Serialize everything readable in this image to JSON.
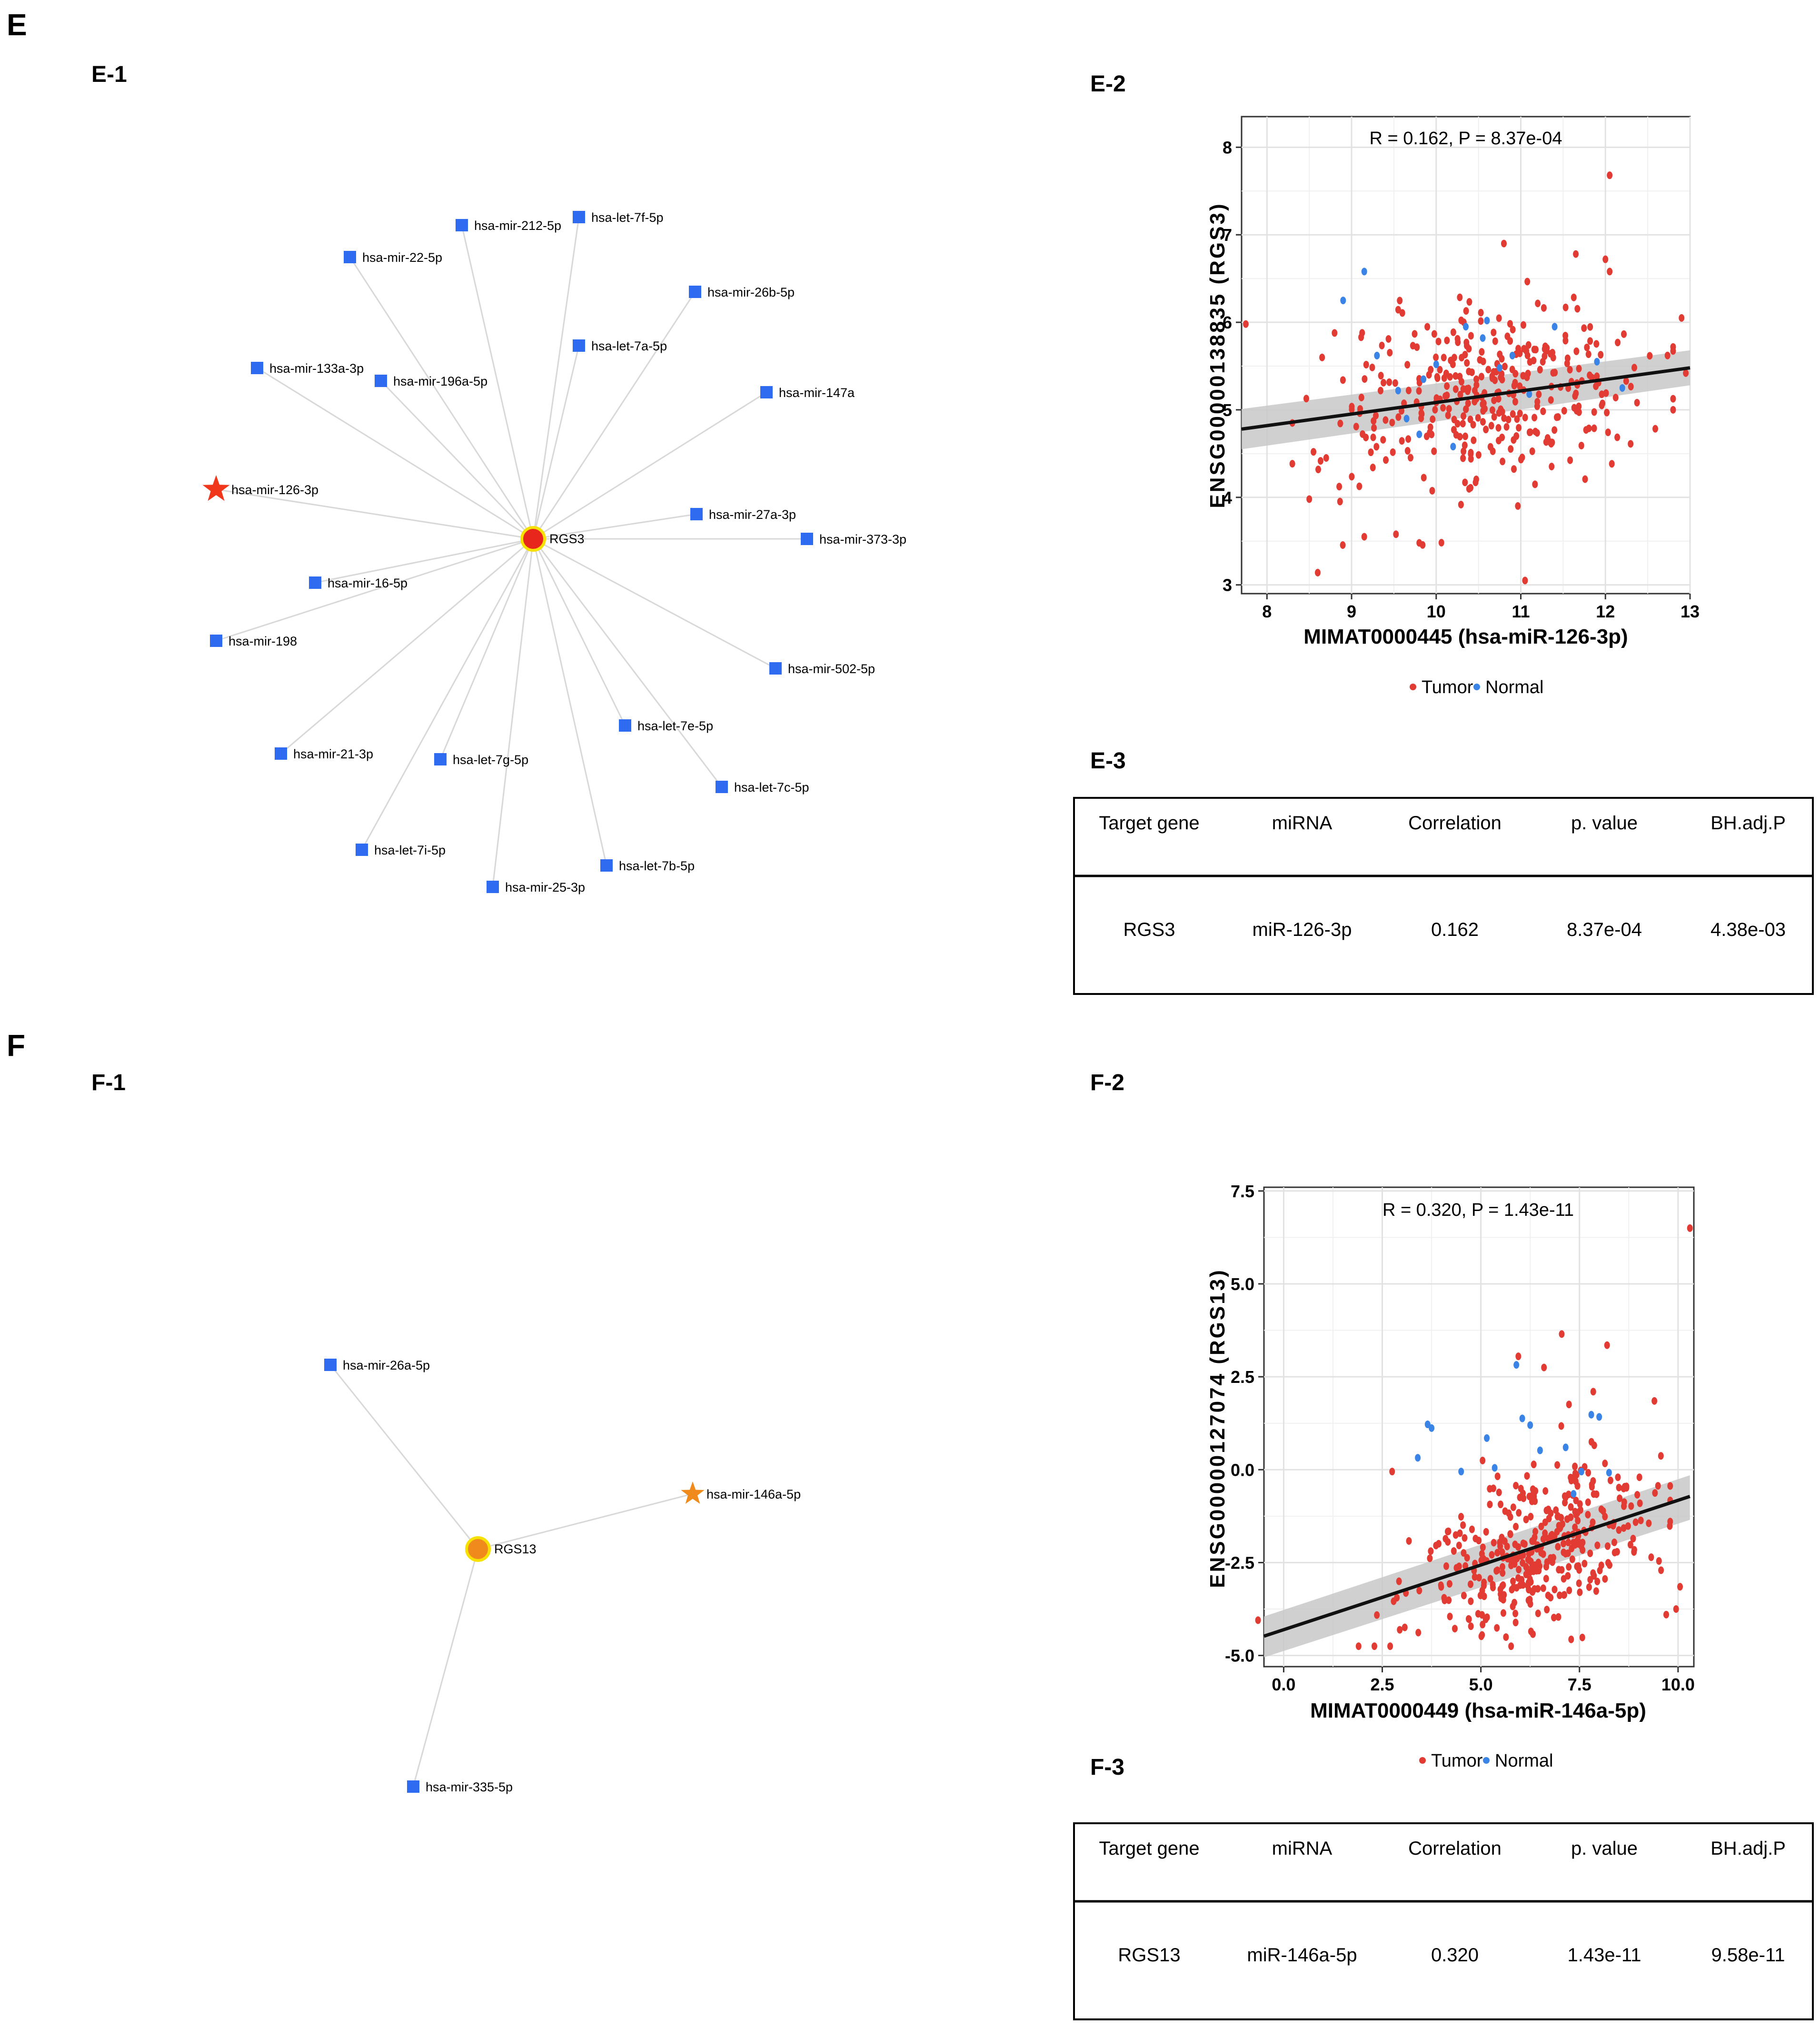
{
  "panels": {
    "E": "E",
    "E1": "E-1",
    "E2": "E-2",
    "E3": "E-3",
    "F": "F",
    "F1": "F-1",
    "F2": "F-2",
    "F3": "F-3"
  },
  "colors": {
    "mirna": "#2f6bf0",
    "edge": "#d8d8d8",
    "hubE": "#e8261c",
    "hubF": "#f08a1c",
    "hubRing": "#f6e100",
    "starE": "#f0371c",
    "starF": "#f08a1c",
    "tumor": "#e23b34",
    "normal": "#3a84e8",
    "band": "#c8c8c8",
    "line": "#111111"
  },
  "networkE": {
    "hub": "RGS3",
    "star": "hsa-mir-126-3p",
    "nodes": [
      "hsa-mir-212-5p",
      "hsa-let-7f-5p",
      "hsa-mir-22-5p",
      "hsa-mir-26b-5p",
      "hsa-let-7a-5p",
      "hsa-mir-133a-3p",
      "hsa-mir-196a-5p",
      "hsa-mir-147a",
      "hsa-mir-27a-3p",
      "hsa-mir-373-3p",
      "hsa-mir-16-5p",
      "hsa-mir-198",
      "hsa-mir-502-5p",
      "hsa-let-7e-5p",
      "hsa-mir-21-3p",
      "hsa-let-7g-5p",
      "hsa-let-7c-5p",
      "hsa-let-7i-5p",
      "hsa-let-7b-5p",
      "hsa-mir-25-3p"
    ]
  },
  "networkF": {
    "hub": "RGS13",
    "star": "hsa-mir-146a-5p",
    "nodes": [
      "hsa-mir-26a-5p",
      "hsa-mir-335-5p"
    ]
  },
  "chart_data": [
    {
      "type": "scatter",
      "title": "R = 0.162, P = 8.37e-04",
      "xlabel": "MIMAT0000445 (hsa-miR-126-3p)",
      "ylabel": "ENSG00000138835 (RGS3)",
      "xlim": [
        7.7,
        13.0
      ],
      "ylim": [
        2.9,
        8.35
      ],
      "xticks": [
        "8",
        "9",
        "10",
        "11",
        "12",
        "13"
      ],
      "yticks": [
        "3",
        "4",
        "5",
        "6",
        "7",
        "8"
      ],
      "legend": [
        "Tumor",
        "Normal"
      ],
      "fit": {
        "x": [
          7.7,
          13.0
        ],
        "y": [
          4.78,
          5.48
        ]
      },
      "band": {
        "x": [
          7.7,
          13.0
        ],
        "lower": [
          4.55,
          5.28
        ],
        "upper": [
          5.01,
          5.68
        ]
      },
      "series": [
        {
          "name": "Normal",
          "points": [
            [
              9.15,
              6.58
            ],
            [
              8.9,
              6.25
            ],
            [
              9.3,
              5.62
            ],
            [
              9.55,
              5.22
            ],
            [
              9.65,
              4.9
            ],
            [
              9.85,
              5.35
            ],
            [
              10.0,
              5.52
            ],
            [
              10.2,
              4.58
            ],
            [
              10.35,
              5.95
            ],
            [
              10.55,
              5.82
            ],
            [
              10.75,
              5.48
            ],
            [
              10.9,
              5.62
            ],
            [
              11.1,
              5.18
            ],
            [
              11.4,
              5.95
            ],
            [
              12.2,
              5.25
            ],
            [
              9.8,
              4.72
            ],
            [
              10.6,
              6.02
            ],
            [
              11.9,
              5.55
            ]
          ]
        },
        {
          "name": "Tumor",
          "points": [
            [
              7.75,
              5.98
            ],
            [
              8.5,
              3.98
            ],
            [
              8.6,
              3.14
            ],
            [
              12.05,
              7.68
            ],
            [
              10.8,
              6.9
            ],
            [
              11.05,
              3.05
            ],
            [
              9.15,
              3.55
            ],
            [
              9.8,
              3.48
            ],
            [
              12.9,
              6.05
            ],
            [
              12.95,
              5.42
            ],
            [
              12.0,
              6.72
            ],
            [
              12.05,
              6.58
            ],
            [
              11.65,
              6.78
            ],
            [
              8.3,
              4.85
            ],
            [
              8.55,
              4.52
            ],
            [
              8.7,
              4.45
            ]
          ]
        }
      ]
    },
    {
      "type": "scatter",
      "title": "R = 0.320, P = 1.43e-11",
      "xlabel": "MIMAT0000449 (hsa-miR-146a-5p)",
      "ylabel": "ENSG00000127074 (RGS13)",
      "xlim": [
        -0.5,
        10.4
      ],
      "ylim": [
        -5.3,
        7.6
      ],
      "xticks": [
        "0.0",
        "2.5",
        "5.0",
        "7.5",
        "10.0"
      ],
      "yticks": [
        "-5.0",
        "-2.5",
        "0.0",
        "2.5",
        "5.0",
        "7.5"
      ],
      "legend": [
        "Tumor",
        "Normal"
      ],
      "fit": {
        "x": [
          -0.5,
          10.3
        ],
        "y": [
          -4.48,
          -0.72
        ]
      },
      "band": {
        "x": [
          -0.5,
          10.3
        ],
        "lower": [
          -5.05,
          -1.35
        ],
        "upper": [
          -3.95,
          -0.15
        ]
      },
      "series": [
        {
          "name": "Normal",
          "points": [
            [
              3.65,
              1.22
            ],
            [
              3.75,
              1.12
            ],
            [
              3.4,
              0.32
            ],
            [
              4.5,
              -0.05
            ],
            [
              5.15,
              0.85
            ],
            [
              5.35,
              0.05
            ],
            [
              5.9,
              2.82
            ],
            [
              6.05,
              1.38
            ],
            [
              6.25,
              1.2
            ],
            [
              6.5,
              0.52
            ],
            [
              7.15,
              0.6
            ],
            [
              7.35,
              -0.65
            ],
            [
              7.55,
              -0.05
            ],
            [
              7.8,
              1.48
            ],
            [
              8.25,
              -0.08
            ],
            [
              8.0,
              1.42
            ]
          ]
        },
        {
          "name": "Tumor",
          "points": [
            [
              10.3,
              6.5
            ],
            [
              -0.65,
              -4.05
            ],
            [
              7.05,
              3.65
            ],
            [
              8.2,
              3.35
            ],
            [
              9.4,
              1.85
            ],
            [
              10.05,
              -3.15
            ],
            [
              9.95,
              -3.75
            ],
            [
              9.7,
              -3.9
            ],
            [
              2.3,
              -4.75
            ],
            [
              2.7,
              -4.75
            ],
            [
              5.95,
              3.05
            ],
            [
              6.6,
              2.75
            ],
            [
              7.85,
              2.1
            ],
            [
              2.75,
              -0.05
            ],
            [
              1.9,
              -4.75
            ]
          ]
        }
      ]
    }
  ],
  "tableE": {
    "headers": [
      "Target gene",
      "miRNA",
      "Correlation",
      "p. value",
      "BH.adj.P"
    ],
    "row": [
      "RGS3",
      "miR-126-3p",
      "0.162",
      "8.37e-04",
      "4.38e-03"
    ]
  },
  "tableF": {
    "headers": [
      "Target gene",
      "miRNA",
      "Correlation",
      "p. value",
      "BH.adj.P"
    ],
    "row": [
      "RGS13",
      "miR-146a-5p",
      "0.320",
      "1.43e-11",
      "9.58e-11"
    ]
  }
}
